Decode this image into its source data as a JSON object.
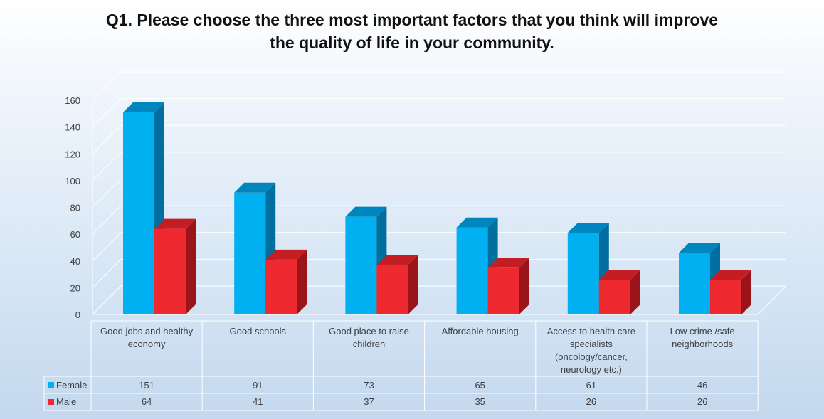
{
  "chart_data": {
    "type": "bar",
    "title_lines": [
      "Q1. Please choose the three most important factors that you think will improve",
      "the quality of life in your community."
    ],
    "categories": [
      [
        "Good jobs and healthy",
        "economy"
      ],
      [
        "Good schools"
      ],
      [
        "Good place to raise",
        "children"
      ],
      [
        "Affordable housing"
      ],
      [
        "Access to health care",
        "specialists",
        "(oncology/cancer,",
        "neurology etc.)"
      ],
      [
        "Low crime /safe",
        "neighborhoods"
      ]
    ],
    "series": [
      {
        "name": "Female",
        "values": [
          151,
          91,
          73,
          65,
          61,
          46
        ],
        "color": "#00B0F0",
        "side_color": "#006E9E",
        "top_color": "#0086BF"
      },
      {
        "name": "Male",
        "values": [
          64,
          41,
          37,
          35,
          26,
          26
        ],
        "color": "#EE2A30",
        "side_color": "#9A1519",
        "top_color": "#C41E24"
      }
    ],
    "y_ticks": [
      0,
      20,
      40,
      60,
      80,
      100,
      120,
      140,
      160
    ],
    "ylim": [
      0,
      160
    ],
    "grid": true,
    "legend": "data-table"
  }
}
